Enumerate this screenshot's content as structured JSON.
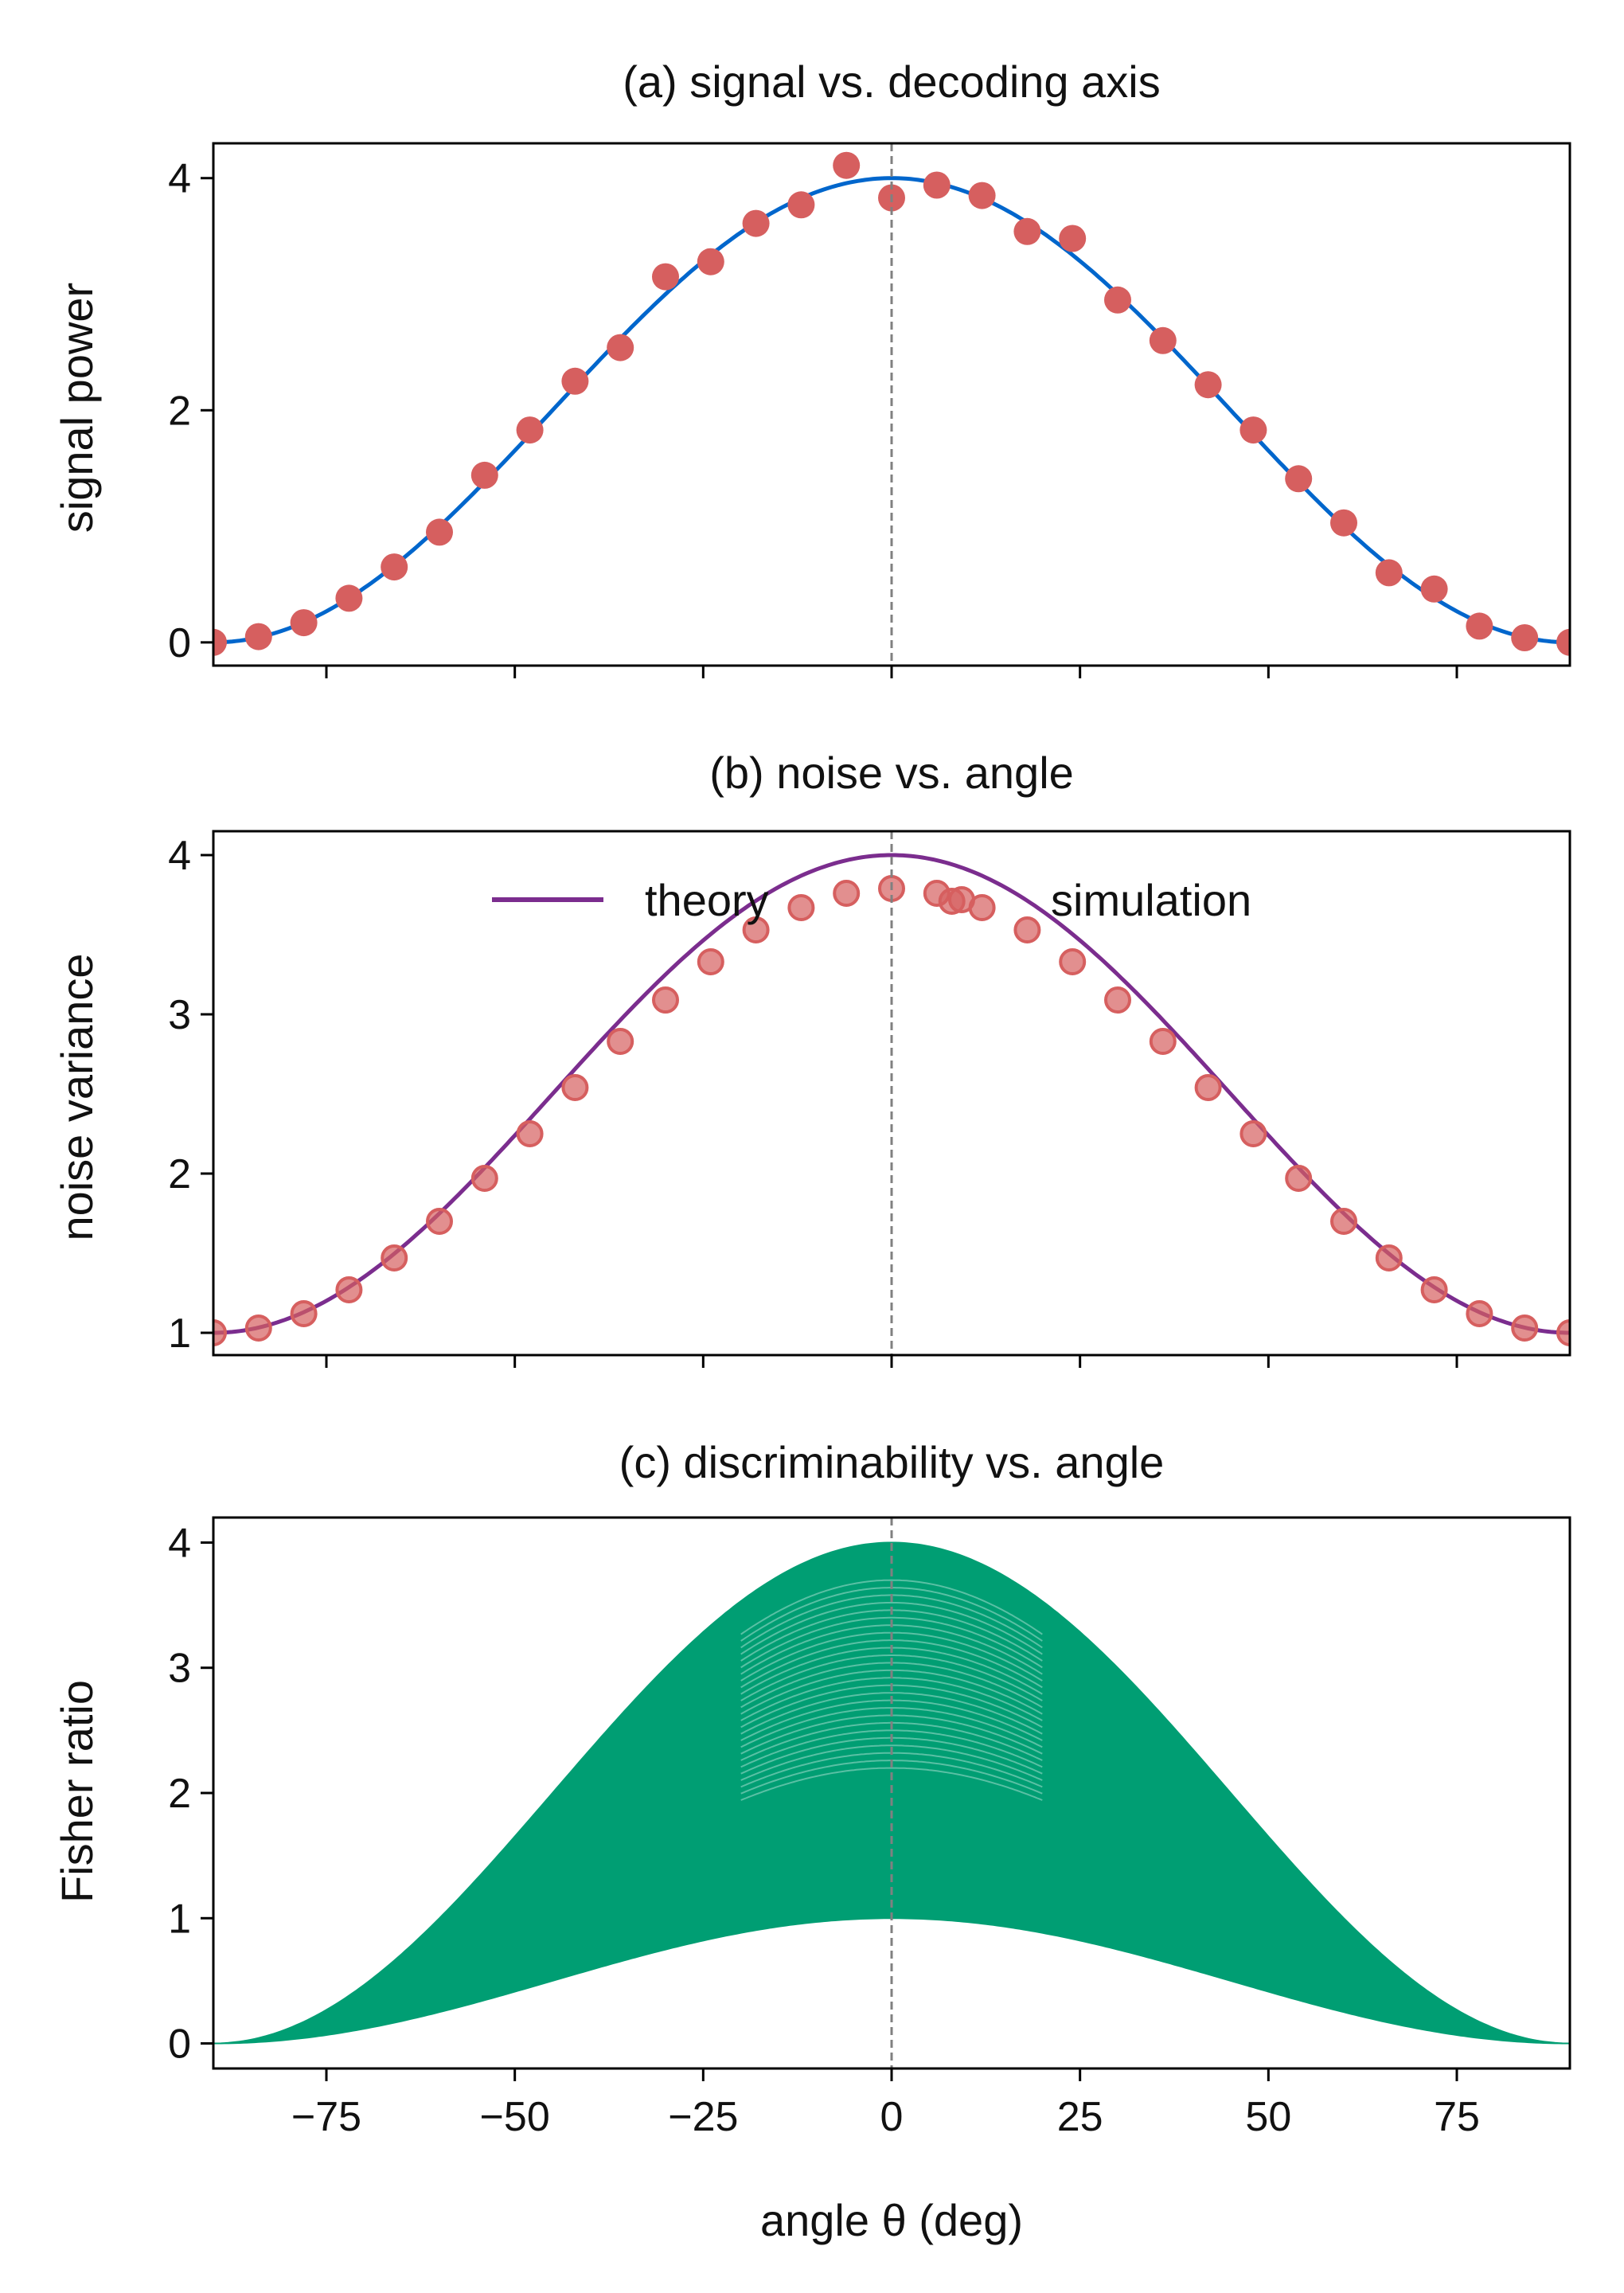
{
  "chart_data": [
    {
      "type": "line",
      "title": "(a) signal vs. decoding axis",
      "ylabel": "signal power",
      "xlabel": "",
      "xlim": [
        -90,
        90
      ],
      "ylim": [
        -0.2,
        4.3
      ],
      "yticks": [
        0,
        2,
        4
      ],
      "xticks": [
        -75,
        -50,
        -25,
        0,
        25,
        50,
        75
      ],
      "show_x_ticklabels": false,
      "vline_x": 0,
      "colors": {
        "line": "#0066cc",
        "points": "#d65f5f",
        "vline": "#808080"
      },
      "series": [
        {
          "type": "line",
          "formula": "4*cos^2(theta)",
          "x": [
            -90,
            -75,
            -60,
            -45,
            -30,
            -15,
            0,
            15,
            30,
            45,
            60,
            75,
            90
          ],
          "y": [
            0,
            0.268,
            1.0,
            2.0,
            3.0,
            3.732,
            4.0,
            3.732,
            3.0,
            2.0,
            1.0,
            0.268,
            0
          ]
        },
        {
          "type": "scatter",
          "x": [
            -90,
            -84,
            -78,
            -72,
            -66,
            -60,
            -54,
            -48,
            -42,
            -36,
            -30,
            -24,
            -18,
            -12,
            -6,
            0,
            6,
            12,
            18,
            24,
            30,
            36,
            42,
            48,
            54,
            60,
            66,
            72,
            78,
            84,
            90
          ],
          "y": [
            0,
            0.05,
            0.17,
            0.38,
            0.65,
            0.95,
            1.44,
            1.83,
            2.25,
            2.54,
            3.15,
            3.28,
            3.61,
            3.77,
            4.11,
            3.83,
            3.94,
            3.85,
            3.54,
            3.48,
            2.95,
            2.6,
            2.22,
            1.83,
            1.41,
            1.03,
            0.6,
            0.46,
            0.14,
            0.04,
            0
          ]
        }
      ]
    },
    {
      "type": "line",
      "title": "(b) noise vs. angle",
      "ylabel": "noise variance",
      "xlabel": "",
      "xlim": [
        -90,
        90
      ],
      "ylim": [
        0.86,
        4.15
      ],
      "yticks": [
        1,
        2,
        3,
        4
      ],
      "xticks": [
        -75,
        -50,
        -25,
        0,
        25,
        50,
        75
      ],
      "show_x_ticklabels": false,
      "vline_x": 0,
      "legend": {
        "placement": "upper center",
        "entries": [
          "theory",
          "simulation"
        ]
      },
      "colors": {
        "line": "#7b2d8e",
        "points": "#d65f5f",
        "vline": "#808080"
      },
      "series": [
        {
          "name": "theory",
          "type": "line",
          "formula": "1+3*cos^2(theta)",
          "x": [
            -90,
            -75,
            -60,
            -45,
            -30,
            -15,
            0,
            15,
            30,
            45,
            60,
            75,
            90
          ],
          "y": [
            1,
            1.201,
            1.75,
            2.5,
            3.25,
            3.799,
            4.0,
            3.799,
            3.25,
            2.5,
            1.75,
            1.201,
            1
          ]
        },
        {
          "name": "simulation",
          "type": "scatter",
          "x": [
            -90,
            -84,
            -78,
            -72,
            -66,
            -60,
            -54,
            -48,
            -42,
            -36,
            -30,
            -24,
            -18,
            -12,
            -6,
            0,
            6,
            8,
            12,
            18,
            24,
            30,
            36,
            42,
            48,
            54,
            60,
            66,
            72,
            78,
            84,
            90
          ],
          "y": [
            1,
            1.03,
            1.12,
            1.27,
            1.47,
            1.7,
            1.97,
            2.25,
            2.54,
            2.83,
            3.09,
            3.33,
            3.53,
            3.67,
            3.76,
            3.79,
            3.76,
            3.71,
            3.67,
            3.53,
            3.33,
            3.09,
            2.83,
            2.54,
            2.25,
            1.97,
            1.7,
            1.47,
            1.27,
            1.12,
            1.03,
            1
          ]
        }
      ]
    },
    {
      "type": "area",
      "title": "(c) discriminability vs. angle",
      "ylabel": "Fisher ratio",
      "xlabel": "angle θ (deg)",
      "xlim": [
        -90,
        90
      ],
      "ylim": [
        -0.2,
        4.2
      ],
      "yticks": [
        0,
        1,
        2,
        3,
        4
      ],
      "xticks": [
        -75,
        -50,
        -25,
        0,
        25,
        50,
        75
      ],
      "xticklabels": [
        "−75",
        "−50",
        "−25",
        "0",
        "25",
        "50",
        "75"
      ],
      "show_x_ticklabels": true,
      "vline_x": 0,
      "colors": {
        "fill": "#009e73",
        "inner_lines": "#ffffff",
        "vline": "#808080"
      },
      "series": [
        {
          "type": "area",
          "formula_upper": "4*cos^2(theta)",
          "formula_lower": "cos^2(theta)",
          "x": [
            -90,
            -75,
            -60,
            -45,
            -30,
            -15,
            0,
            15,
            30,
            45,
            60,
            75,
            90
          ],
          "upper": [
            0,
            0.268,
            1.0,
            2.0,
            3.0,
            3.732,
            4.0,
            3.732,
            3.0,
            2.0,
            1.0,
            0.268,
            0
          ],
          "lower": [
            0,
            0.067,
            0.25,
            0.5,
            0.75,
            0.933,
            1.0,
            0.933,
            0.75,
            0.5,
            0.25,
            0.067,
            0
          ]
        }
      ]
    }
  ]
}
